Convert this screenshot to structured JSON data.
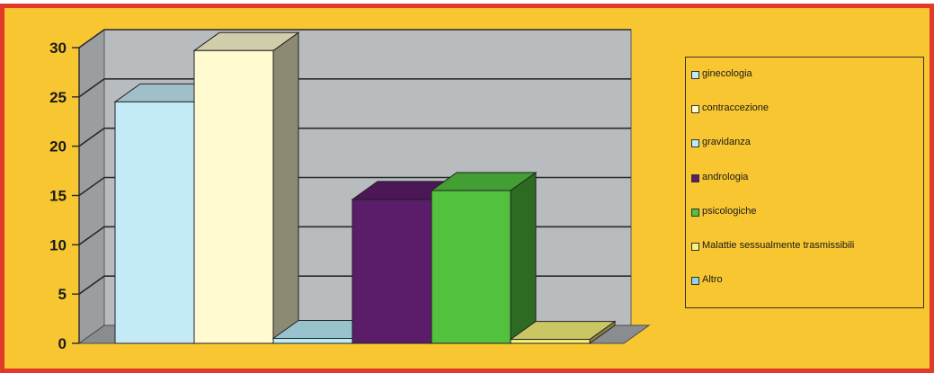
{
  "chart_data": {
    "type": "bar",
    "style": "3d-clustered-columns",
    "ylim": [
      0,
      30
    ],
    "yticks": [
      "0",
      "5",
      "10",
      "15",
      "20",
      "25",
      "30"
    ],
    "grid": true,
    "legend_position": "right",
    "series": [
      {
        "name": "ginecologia",
        "value": 24.5,
        "color": "#c4e9f7"
      },
      {
        "name": "contraccezione",
        "value": 29.7,
        "color": "#fffacf"
      },
      {
        "name": "gravidanza",
        "value": 0.5,
        "color": "#b9eef9"
      },
      {
        "name": "andrologia",
        "value": 14.6,
        "color": "#5b1c6a"
      },
      {
        "name": "psicologiche",
        "value": 15.5,
        "color": "#52c13e"
      },
      {
        "name": "Malattie sessualmente trasmissibili",
        "value": 0.4,
        "color": "#f7f27a"
      },
      {
        "name": "Altro",
        "value": 0,
        "color": "#8fd4ea"
      }
    ]
  }
}
